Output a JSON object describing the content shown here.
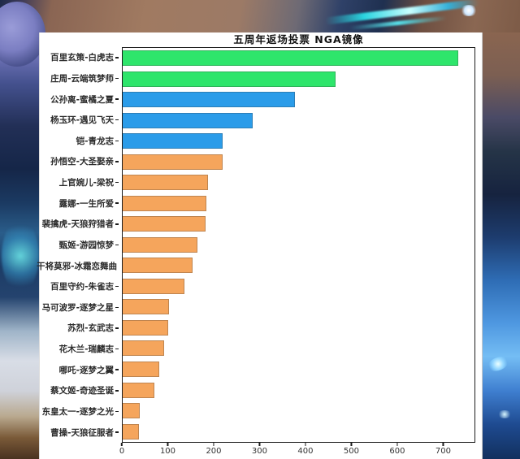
{
  "chart": {
    "title": "五周年返场投票  NGA镜像"
  },
  "chart_data": {
    "type": "bar",
    "orientation": "horizontal",
    "title": "五周年返场投票 NGA镜像",
    "categories": [
      "百里玄策-白虎志",
      "庄周-云端筑梦师",
      "公孙离-蜜橘之夏",
      "杨玉环-遇见飞天",
      "铠-青龙志",
      "孙悟空-大圣娶亲",
      "上官婉儿-梁祝",
      "露娜-一生所爱",
      "裴擒虎-天狼狩猎者",
      "甄姬-游园惊梦",
      "干将莫邪-冰霜恋舞曲",
      "百里守约-朱雀志",
      "马可波罗-逐梦之星",
      "苏烈-玄武志",
      "花木兰-瑞麟志",
      "哪吒-逐梦之翼",
      "蔡文姬-奇迹圣诞",
      "东皇太一-逐梦之光",
      "曹操-天狼征服者"
    ],
    "values": [
      735,
      466,
      377,
      285,
      219,
      218,
      186,
      184,
      181,
      163,
      153,
      136,
      102,
      100,
      90,
      80,
      70,
      38,
      35
    ],
    "bar_colors": [
      "#2ee56b",
      "#2ee56b",
      "#2b9ce9",
      "#2b9ce9",
      "#2b9ce9",
      "#f5a55c",
      "#f5a55c",
      "#f5a55c",
      "#f5a55c",
      "#f5a55c",
      "#f5a55c",
      "#f5a55c",
      "#f5a55c",
      "#f5a55c",
      "#f5a55c",
      "#f5a55c",
      "#f5a55c",
      "#f5a55c",
      "#f5a55c"
    ],
    "color_legend": {
      "green": "#2ee56b",
      "blue": "#2b9ce9",
      "orange": "#f5a55c"
    },
    "xlabel": "",
    "ylabel": "",
    "xlim": [
      0,
      770
    ],
    "x_ticks": [
      0,
      100,
      200,
      300,
      400,
      500,
      600,
      700
    ],
    "grid": false,
    "legend": false
  }
}
